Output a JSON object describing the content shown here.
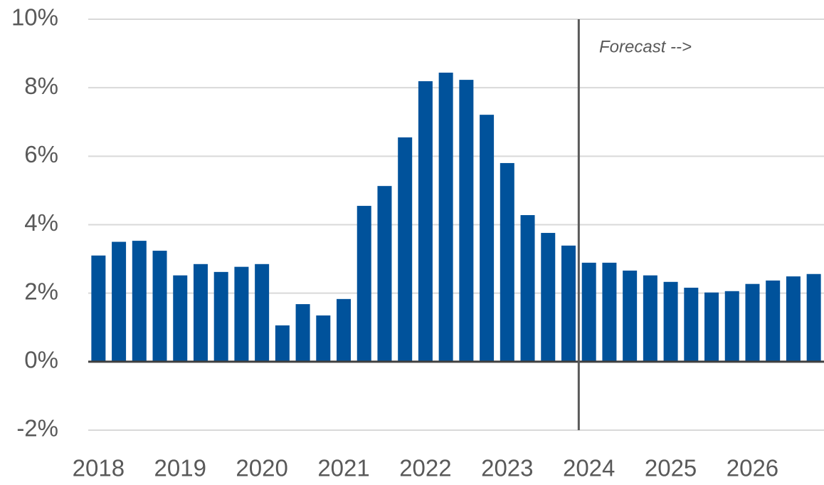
{
  "chart_data": {
    "type": "bar",
    "categories": [
      "2018",
      null,
      null,
      null,
      "2019",
      null,
      null,
      null,
      "2020",
      null,
      null,
      null,
      "2021",
      null,
      null,
      null,
      "2022",
      null,
      null,
      null,
      "2023",
      null,
      null,
      null,
      "2024",
      null,
      null,
      null,
      "2025",
      null,
      null,
      null,
      "2026",
      null,
      null,
      null
    ],
    "values": [
      3.1,
      3.5,
      3.53,
      3.24,
      2.52,
      2.85,
      2.62,
      2.77,
      2.85,
      1.06,
      1.68,
      1.35,
      1.83,
      4.55,
      5.13,
      6.55,
      8.19,
      8.44,
      8.23,
      7.21,
      5.8,
      4.28,
      3.76,
      3.39,
      2.89,
      2.89,
      2.66,
      2.52,
      2.33,
      2.16,
      2.02,
      2.06,
      2.27,
      2.37,
      2.49,
      2.56
    ],
    "color": "#00529b",
    "ylim": [
      -2,
      10
    ],
    "yticks": [
      {
        "value": -2,
        "label": "-2%"
      },
      {
        "value": 0,
        "label": "0%"
      },
      {
        "value": 2,
        "label": "2%"
      },
      {
        "value": 4,
        "label": "4%"
      },
      {
        "value": 6,
        "label": "6%"
      },
      {
        "value": 8,
        "label": "8%"
      },
      {
        "value": 10,
        "label": "10%"
      }
    ],
    "grid": true,
    "annotation": "Forecast -->",
    "forecast_from": 24
  }
}
